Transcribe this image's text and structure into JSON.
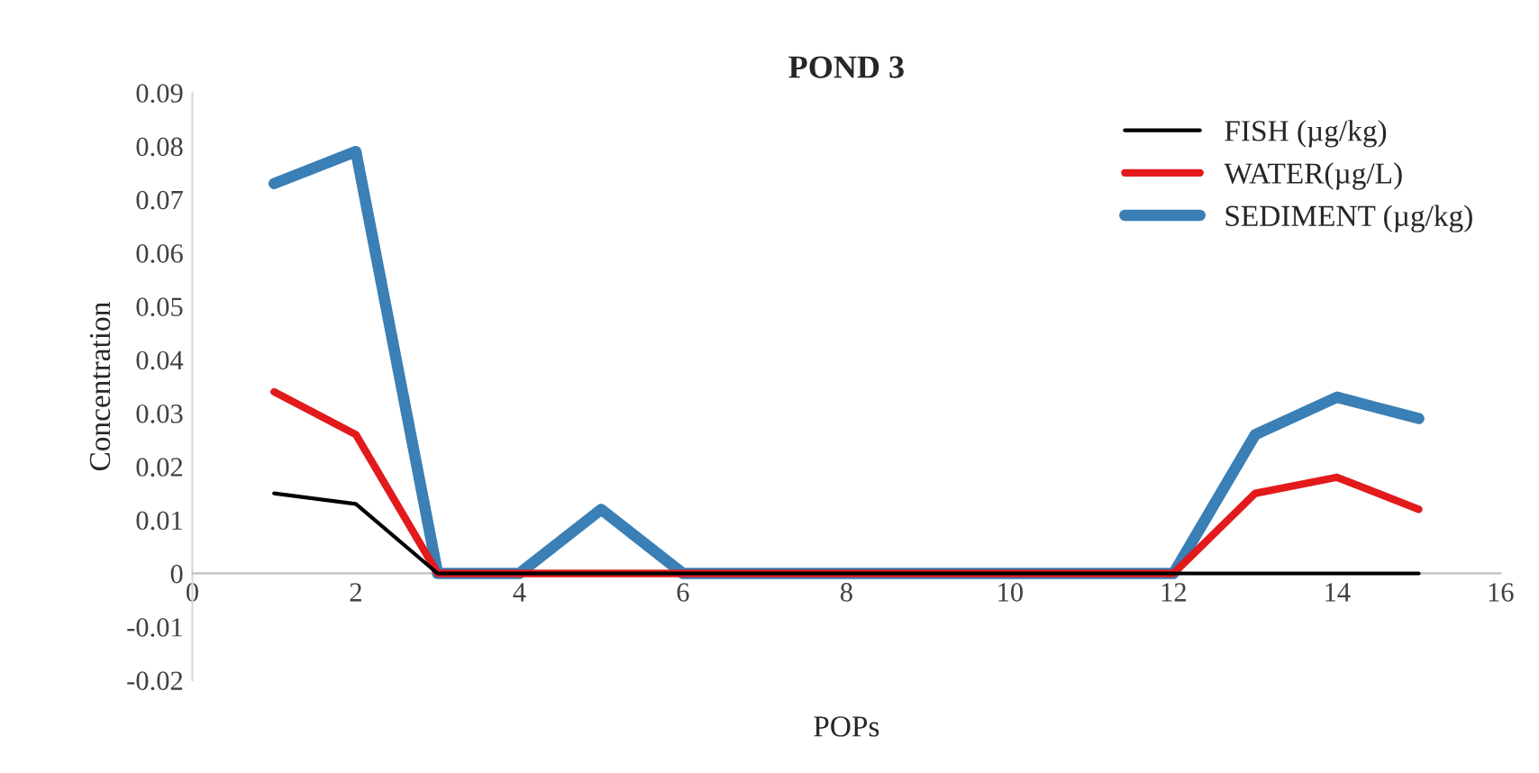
{
  "chart_data": {
    "type": "line",
    "title": "POND 3",
    "xlabel": "POPs",
    "ylabel": "Concentration",
    "x": [
      1,
      2,
      3,
      4,
      5,
      6,
      7,
      8,
      9,
      10,
      11,
      12,
      13,
      14,
      15
    ],
    "series": [
      {
        "name": "FISH (µg/kg)",
        "color": "#000000",
        "values": [
          0.015,
          0.013,
          0,
          0,
          0,
          0,
          0,
          0,
          0,
          0,
          0,
          0,
          0,
          0,
          0
        ]
      },
      {
        "name": "WATER(µg/L)",
        "color": "#e31a1c",
        "values": [
          0.034,
          0.026,
          0,
          0,
          0,
          0,
          0,
          0,
          0,
          0,
          0,
          0,
          0.015,
          0.018,
          0.012
        ]
      },
      {
        "name": "SEDIMENT (µg/kg)",
        "color": "#3a7fb5",
        "values": [
          0.073,
          0.079,
          0,
          0,
          0.012,
          0,
          0,
          0,
          0,
          0,
          0,
          0,
          0.026,
          0.033,
          0.029
        ]
      }
    ],
    "xlim": [
      0,
      16
    ],
    "xticks": [
      0,
      2,
      4,
      6,
      8,
      10,
      12,
      14,
      16
    ],
    "ylim": [
      -0.02,
      0.09
    ],
    "yticks": [
      -0.02,
      -0.01,
      0,
      0.01,
      0.02,
      0.03,
      0.04,
      0.05,
      0.06,
      0.07,
      0.08,
      0.09
    ],
    "grid": false,
    "legend": "top right",
    "marker": "none",
    "line_style": "solid"
  }
}
